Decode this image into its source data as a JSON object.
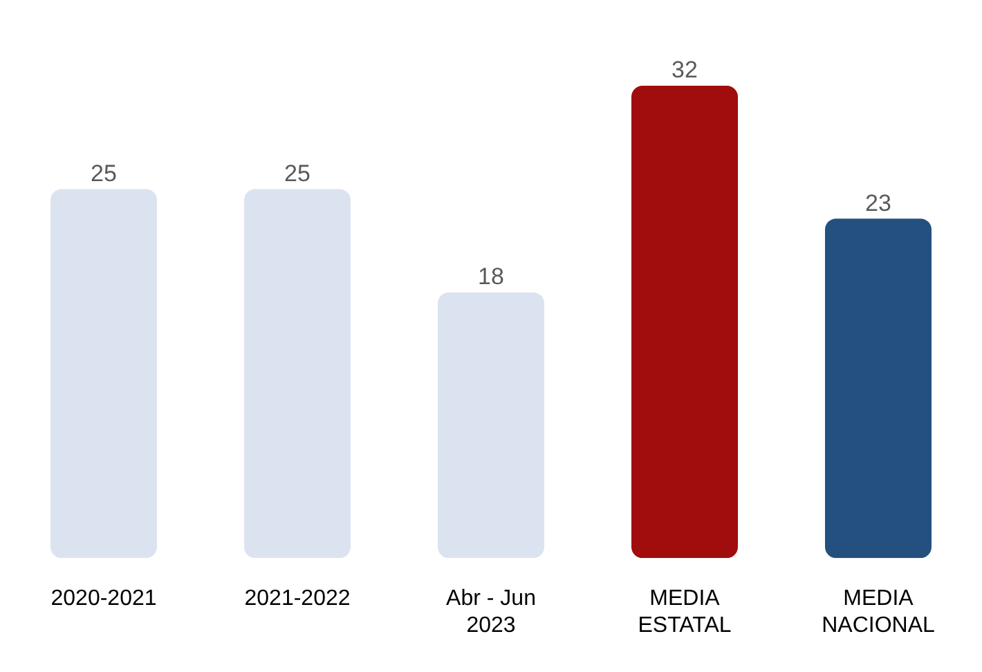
{
  "chart_data": {
    "type": "bar",
    "categories": [
      "2020-2021",
      "2021-2022",
      "Abr - Jun\n2023",
      "MEDIA\nESTATAL",
      "MEDIA\nNACIONAL"
    ],
    "values": [
      25,
      25,
      18,
      32,
      23
    ],
    "colors": [
      "#dce3f0",
      "#dce3f0",
      "#dce3f0",
      "#a10d0d",
      "#23507e"
    ],
    "data_labels": true,
    "grid": false,
    "legend": false
  }
}
